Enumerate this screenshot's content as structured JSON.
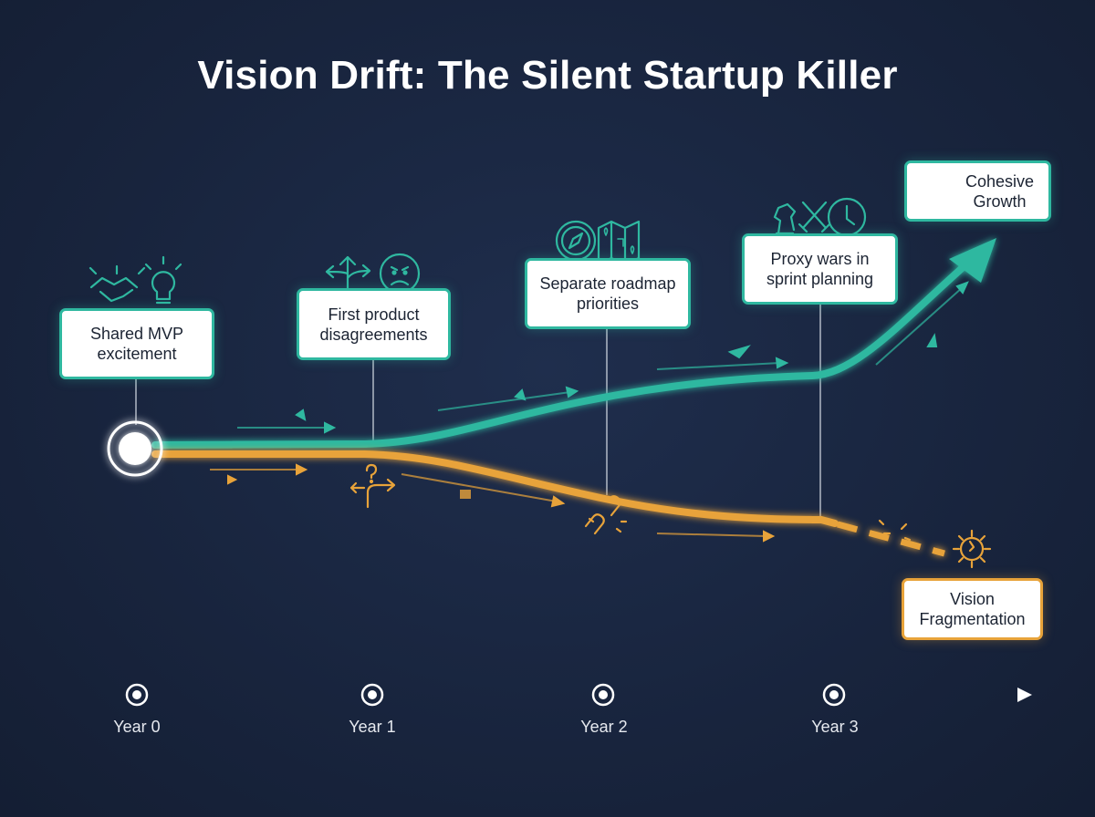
{
  "title": "Vision Drift: The Silent Startup Killer",
  "milestones": [
    {
      "label": "Shared MVP excitement",
      "icons": [
        "handshake-icon",
        "lightbulb-icon"
      ]
    },
    {
      "label": "First product disagreements",
      "icons": [
        "diverging-arrows-icon",
        "frown-face-icon"
      ]
    },
    {
      "label": "Separate roadmap priorities",
      "icons": [
        "compass-icon",
        "map-icon"
      ]
    },
    {
      "label": "Proxy wars in sprint planning",
      "icons": [
        "chess-knight-icon",
        "crossed-swords-icon",
        "clock-icon"
      ]
    }
  ],
  "outcomes": {
    "positive": {
      "label": "Cohesive Growth",
      "icon": "rocket-icon"
    },
    "negative": {
      "label": "Vision Fragmentation",
      "icon": "broken-gear-icon"
    }
  },
  "timeline": [
    "Year 0",
    "Year 1",
    "Year 2",
    "Year 3"
  ],
  "colors": {
    "aligned": "#2fb8a0",
    "drift": "#e8a33a",
    "background": "#18243d"
  }
}
